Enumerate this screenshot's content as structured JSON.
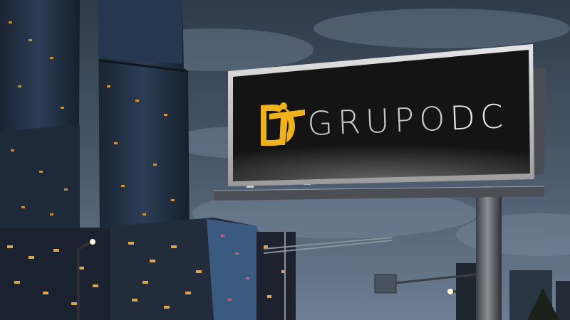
{
  "billboard": {
    "brand_part1": "GRUPO",
    "brand_part2": "DC",
    "logo_icon": "christ-redeemer-silhouette-icon",
    "logo_color": "#f0b21a",
    "panel_color": "#141414",
    "frame_color": "#d8d8d8"
  },
  "sky": {
    "top_color": "#2f3b4a",
    "bottom_color": "#6c7c90"
  }
}
